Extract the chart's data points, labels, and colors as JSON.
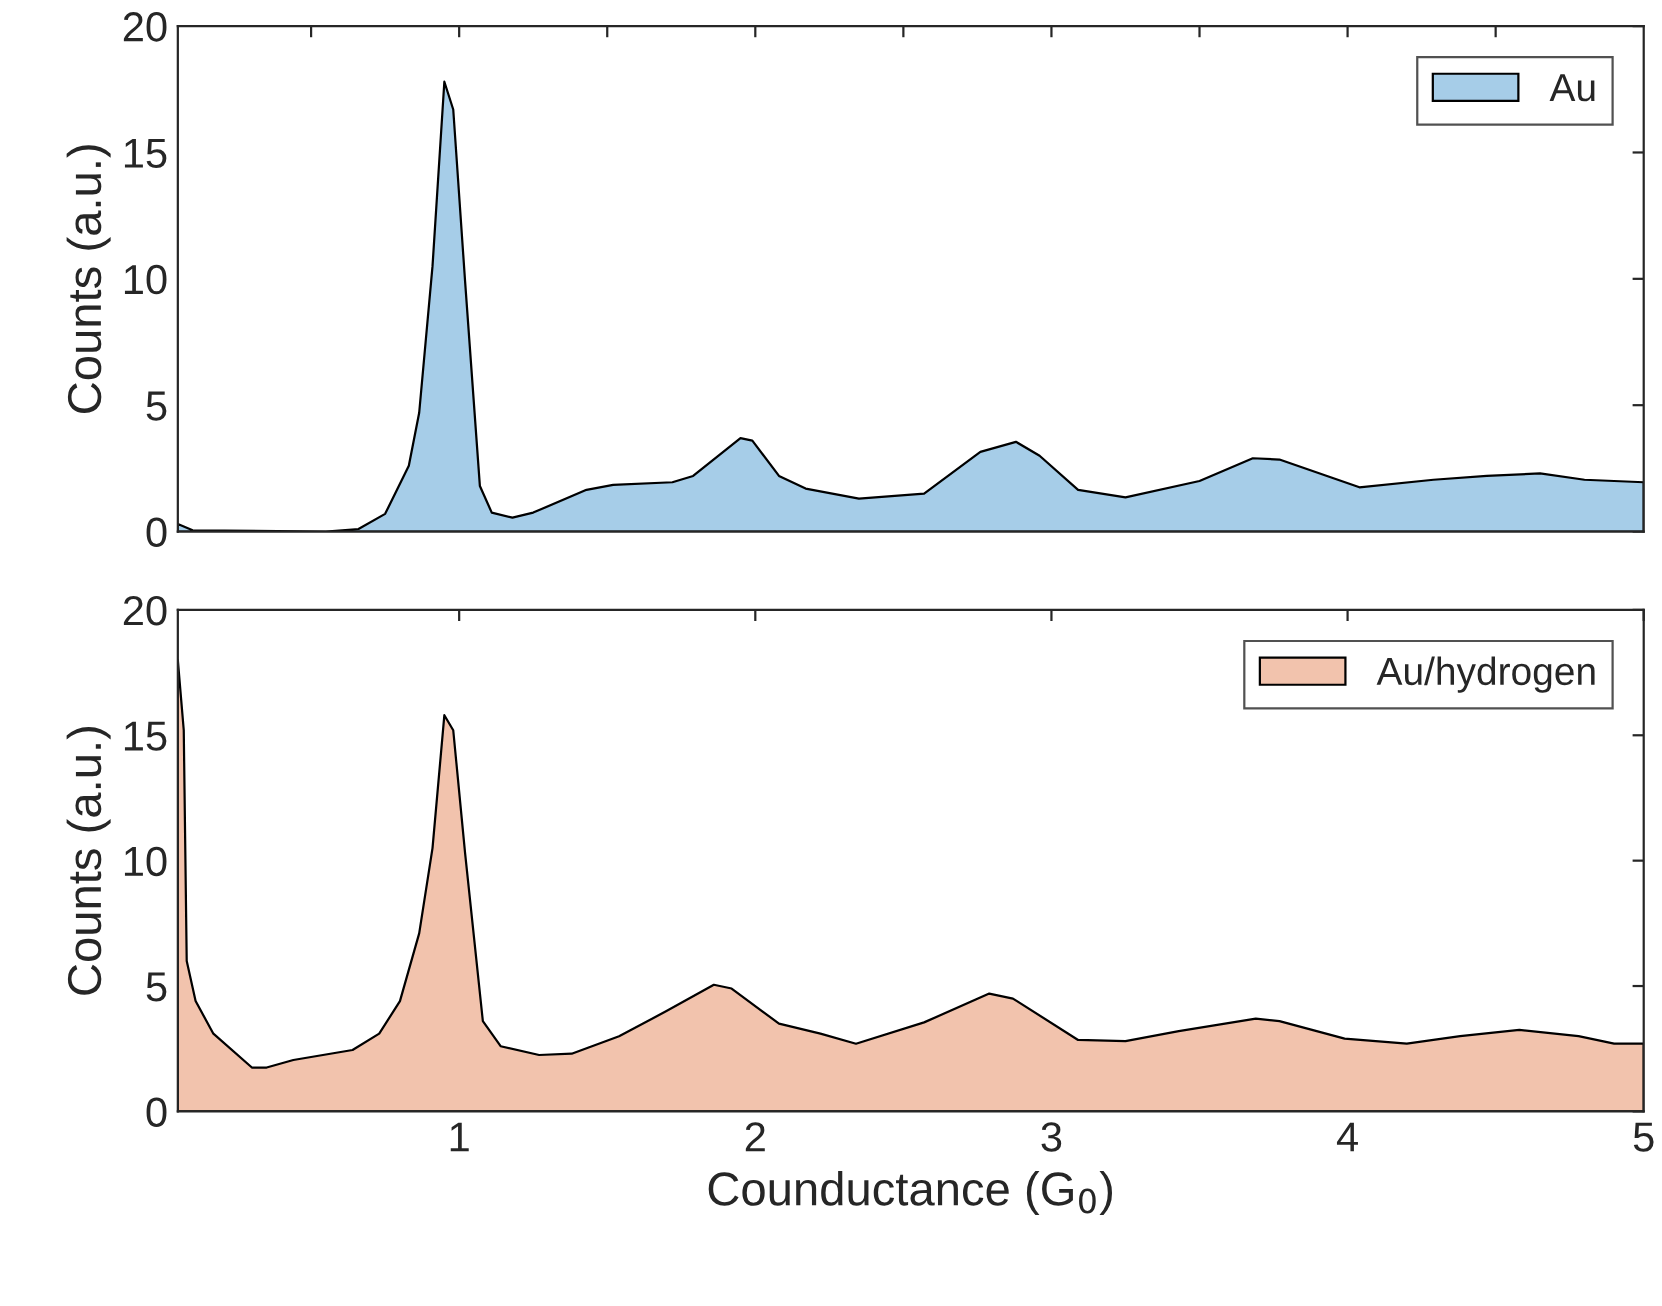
{
  "chart_data": [
    {
      "type": "area",
      "ylabel": "Counts (a.u.)",
      "xlim": [
        0.05,
        5
      ],
      "ylim": [
        0,
        20
      ],
      "xticks": [
        {
          "value": 0.5,
          "label": null
        },
        {
          "value": 1,
          "label": null
        },
        {
          "value": 1.5,
          "label": null
        },
        {
          "value": 2,
          "label": null
        },
        {
          "value": 2.5,
          "label": null
        },
        {
          "value": 3,
          "label": null
        },
        {
          "value": 3.5,
          "label": null
        },
        {
          "value": 4,
          "label": null
        },
        {
          "value": 4.5,
          "label": null
        }
      ],
      "yticks": [
        0,
        5,
        10,
        15,
        20
      ],
      "tick_labels": "y",
      "grid": false,
      "legend": "top right",
      "series": [
        {
          "name": "Au",
          "color": "#a6cde8",
          "x": [
            0.05,
            0.1,
            0.55,
            0.66,
            0.75,
            0.83,
            0.865,
            0.91,
            0.95,
            0.98,
            1.02,
            1.07,
            1.11,
            1.18,
            1.25,
            1.43,
            1.52,
            1.72,
            1.79,
            1.95,
            1.99,
            2.08,
            2.17,
            2.35,
            2.57,
            2.76,
            2.88,
            2.96,
            3.09,
            3.25,
            3.5,
            3.68,
            3.77,
            4.04,
            4.29,
            4.47,
            4.65,
            4.8,
            5.0
          ],
          "values": [
            0.3,
            0.05,
            0,
            0.1,
            0.7,
            2.6,
            4.7,
            10.5,
            17.8,
            16.7,
            9.9,
            1.8,
            0.75,
            0.55,
            0.75,
            1.65,
            1.85,
            1.95,
            2.2,
            3.7,
            3.6,
            2.2,
            1.7,
            1.3,
            1.5,
            3.15,
            3.55,
            3.0,
            1.65,
            1.35,
            2.0,
            2.9,
            2.85,
            1.75,
            2.05,
            2.2,
            2.3,
            2.05,
            1.95
          ]
        }
      ]
    },
    {
      "type": "area",
      "xlabel": "Counductance (G$_{0}$)",
      "ylabel": "Counts (a.u.)",
      "xlim": [
        0.05,
        5
      ],
      "ylim": [
        0,
        20
      ],
      "xticks": [
        1,
        2,
        3,
        4,
        5
      ],
      "yticks": [
        0,
        5,
        10,
        15,
        20
      ],
      "grid": false,
      "legend": "top right",
      "series": [
        {
          "name": "Au/hydrogen",
          "color": "#f2c3ad",
          "x": [
            0.05,
            0.07,
            0.08,
            0.11,
            0.17,
            0.3,
            0.35,
            0.44,
            0.64,
            0.73,
            0.8,
            0.865,
            0.91,
            0.95,
            0.98,
            1.02,
            1.08,
            1.14,
            1.27,
            1.38,
            1.54,
            1.7,
            1.86,
            1.92,
            2.08,
            2.22,
            2.34,
            2.57,
            2.79,
            2.87,
            3.09,
            3.25,
            3.43,
            3.69,
            3.77,
            3.99,
            4.2,
            4.38,
            4.58,
            4.78,
            4.9,
            5.0
          ],
          "values": [
            18,
            15.2,
            6.0,
            4.4,
            3.1,
            1.75,
            1.75,
            2.05,
            2.45,
            3.1,
            4.4,
            7.1,
            10.5,
            15.8,
            15.2,
            10.3,
            3.6,
            2.6,
            2.25,
            2.3,
            3.0,
            4.0,
            5.05,
            4.9,
            3.5,
            3.1,
            2.7,
            3.55,
            4.7,
            4.5,
            2.85,
            2.8,
            3.2,
            3.7,
            3.6,
            2.9,
            2.7,
            3.0,
            3.25,
            3.0,
            2.7,
            2.7
          ]
        }
      ]
    }
  ]
}
